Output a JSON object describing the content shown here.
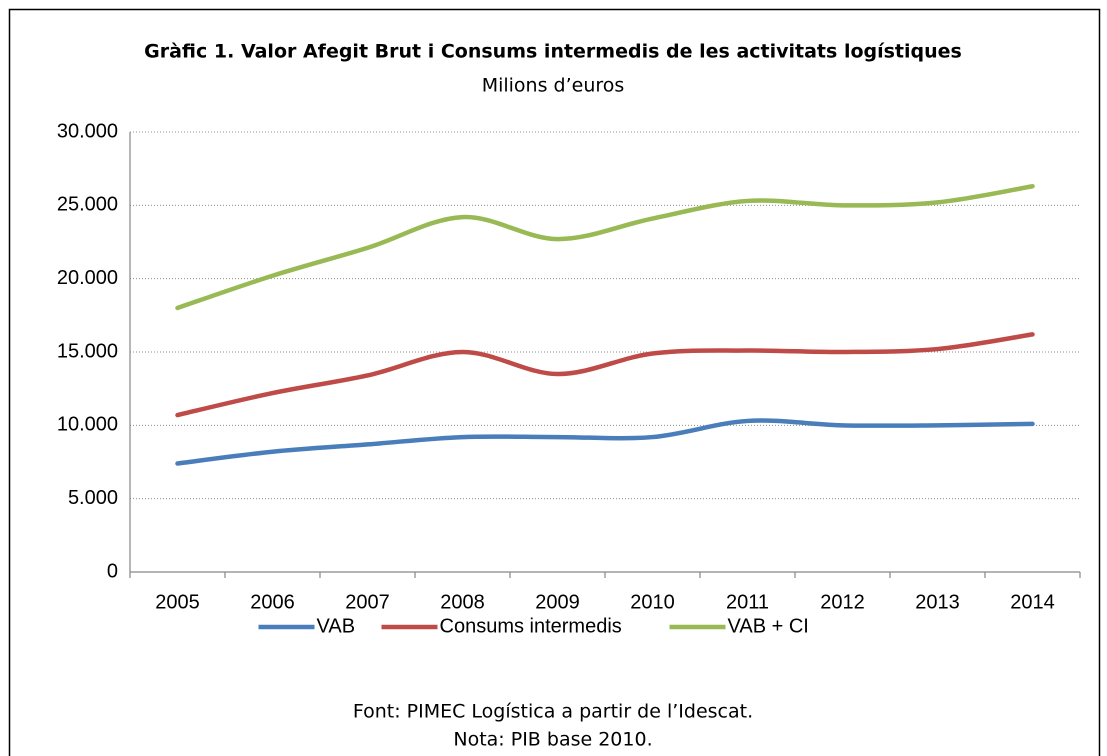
{
  "chart_data": {
    "type": "line",
    "title": "Gràfic 1. Valor Afegit Brut i Consums intermedis de les activitats logístiques",
    "subtitle": "Milions d’euros",
    "categories": [
      "2005",
      "2006",
      "2007",
      "2008",
      "2009",
      "2010",
      "2011",
      "2012",
      "2013",
      "2014"
    ],
    "series": [
      {
        "name": "VAB",
        "color": "#4a7ebb",
        "values": [
          7400,
          8200,
          8700,
          9200,
          9200,
          9200,
          10300,
          10000,
          10000,
          10100
        ]
      },
      {
        "name": "Consums intermedis",
        "color": "#be4b48",
        "values": [
          10700,
          12200,
          13400,
          15000,
          13500,
          14900,
          15100,
          15000,
          15200,
          16200
        ]
      },
      {
        "name": "VAB + CI",
        "color": "#98b954",
        "values": [
          18000,
          20200,
          22100,
          24200,
          22700,
          24100,
          25300,
          25000,
          25200,
          26300
        ]
      }
    ],
    "ylim": [
      0,
      30000
    ],
    "yticks": [
      0,
      {
        "value": 5000,
        "label": "5.000"
      },
      {
        "value": 10000,
        "label": "10.000"
      },
      {
        "value": 15000,
        "label": "15.000"
      },
      {
        "value": 20000,
        "label": "20.000"
      },
      {
        "value": 25000,
        "label": "25.000"
      },
      {
        "value": 30000,
        "label": "30.000"
      }
    ],
    "grid": true,
    "smooth": true,
    "legend": "bottom",
    "notes": [
      "Font: PIMEC Logística a partir de l’Idescat.",
      "Nota: PIB base 2010."
    ]
  }
}
